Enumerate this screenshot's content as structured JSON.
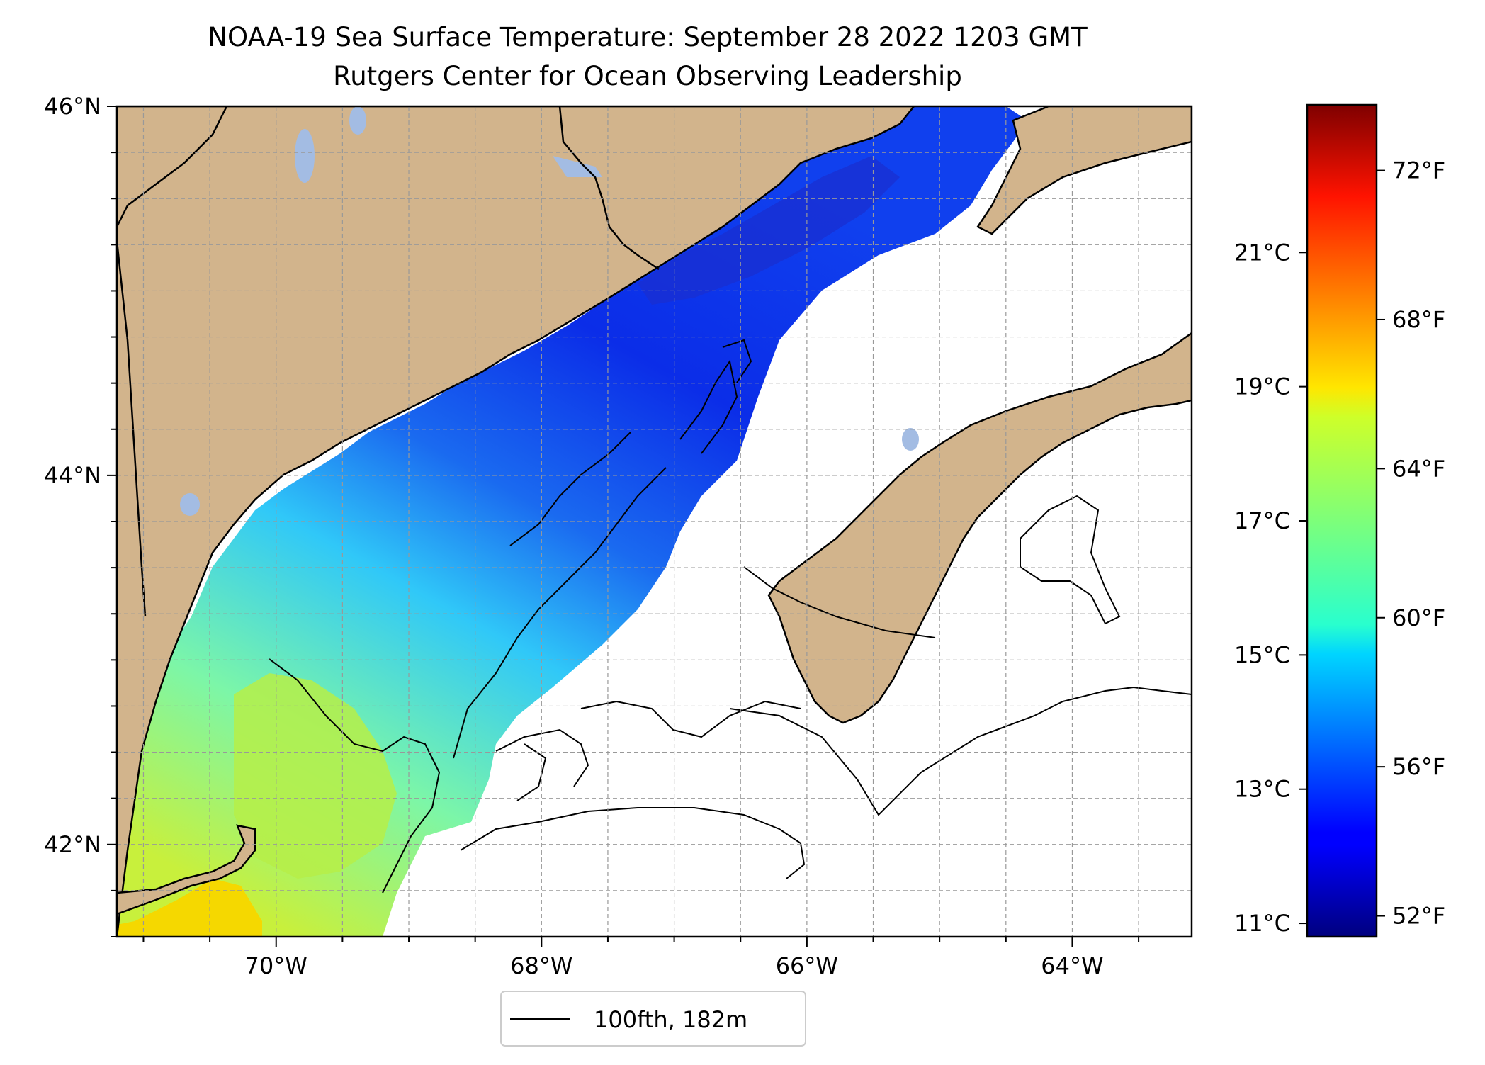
{
  "title": {
    "line1": "NOAA-19 Sea Surface Temperature: September 28 2022 1203 GMT",
    "line2": "Rutgers Center for Ocean Observing Leadership"
  },
  "map": {
    "lat_ticks": [
      {
        "value": 46,
        "label": "46°N"
      },
      {
        "value": 44,
        "label": "44°N"
      },
      {
        "value": 42,
        "label": "42°N"
      }
    ],
    "lon_ticks": [
      {
        "value": -70,
        "label": "70°W"
      },
      {
        "value": -68,
        "label": "68°W"
      },
      {
        "value": -66,
        "label": "66°W"
      },
      {
        "value": -64,
        "label": "64°W"
      }
    ],
    "lon_range": [
      -71.2,
      -63.1
    ],
    "lat_range": [
      41.5,
      46.0
    ],
    "grid": true,
    "colors": {
      "land": "#d2b48c",
      "lakes": "#a3bce3",
      "coast": "#000000"
    }
  },
  "legend": {
    "label": "100fth, 182m"
  },
  "colorbar": {
    "colormap": "jet",
    "celsius_range": [
      10.8,
      23.2
    ],
    "celsius_ticks": [
      {
        "value": 11,
        "label": "11°C"
      },
      {
        "value": 13,
        "label": "13°C"
      },
      {
        "value": 15,
        "label": "15°C"
      },
      {
        "value": 17,
        "label": "17°C"
      },
      {
        "value": 19,
        "label": "19°C"
      },
      {
        "value": 21,
        "label": "21°C"
      }
    ],
    "fahrenheit_ticks": [
      {
        "value": 52,
        "label": "52°F"
      },
      {
        "value": 56,
        "label": "56°F"
      },
      {
        "value": 60,
        "label": "60°F"
      },
      {
        "value": 64,
        "label": "64°F"
      },
      {
        "value": 68,
        "label": "68°F"
      },
      {
        "value": 72,
        "label": "72°F"
      }
    ]
  }
}
